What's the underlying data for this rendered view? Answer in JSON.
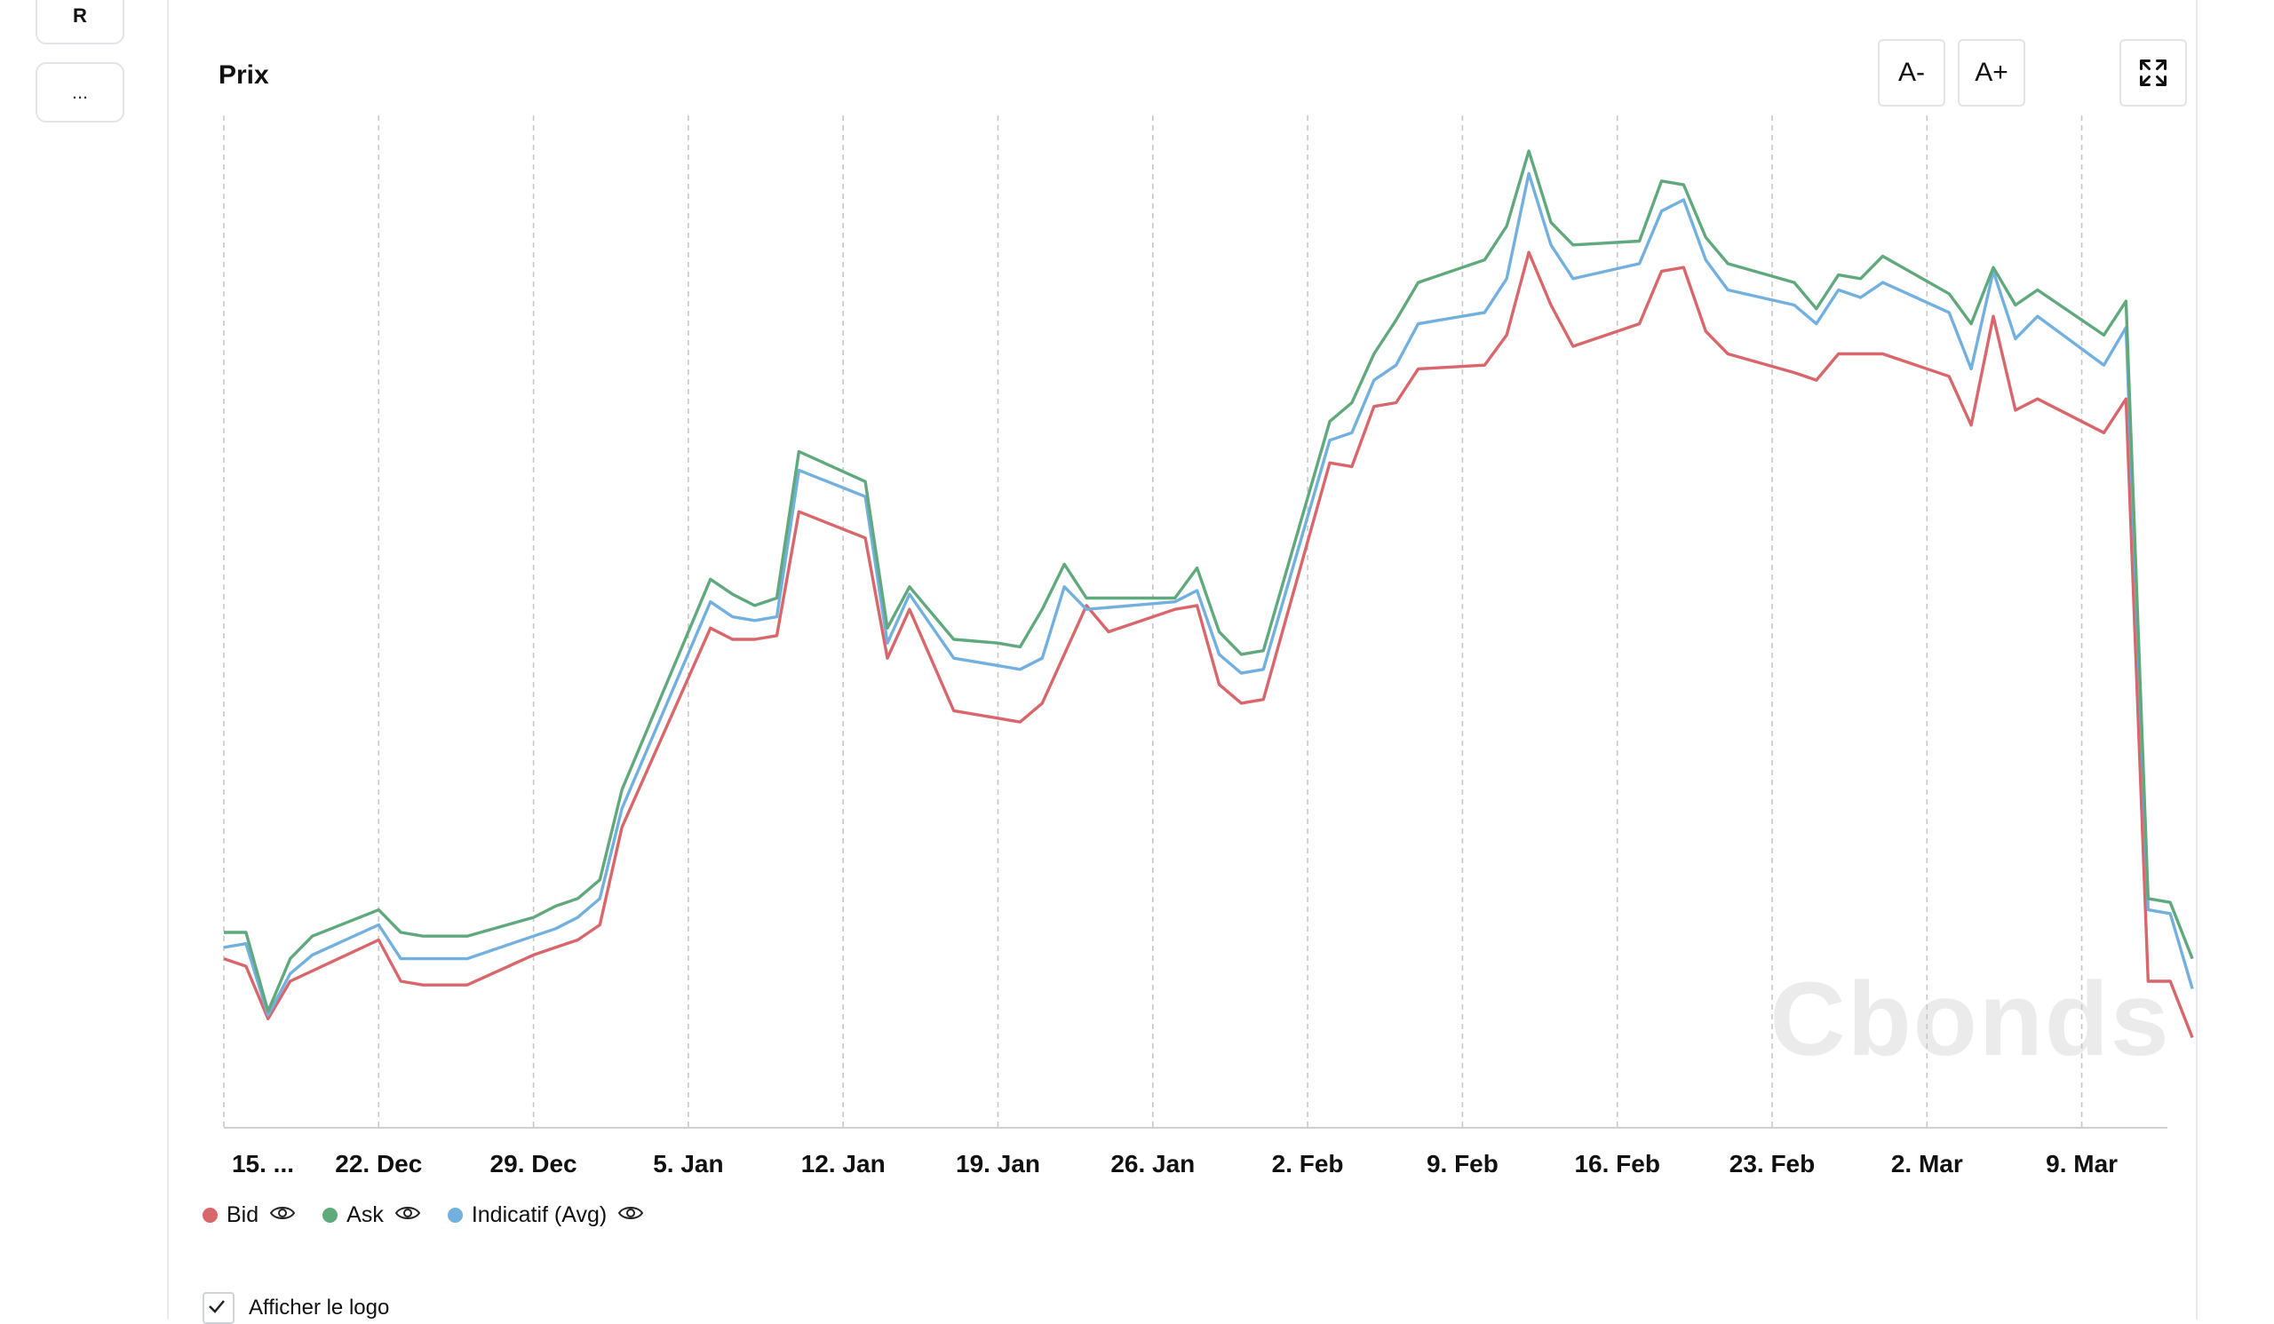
{
  "sidebar": {
    "r_label": "R",
    "more_label": "..."
  },
  "toolbar": {
    "font_decrease": "A-",
    "font_increase": "A+",
    "fullscreen_icon": "expand-icon"
  },
  "watermark": "Cbonds",
  "logo_option": {
    "label": "Afficher le logo"
  },
  "colors": {
    "bid": "#d9666b",
    "ask": "#5fa97c",
    "avg": "#72b0df",
    "grid": "#c8c8c8",
    "watermark": "#ebebeb"
  },
  "chart_data": {
    "type": "line",
    "title": "Prix",
    "xlabel": "",
    "ylabel": "",
    "x_tick_labels": [
      "15. ...",
      "22. Dec",
      "29. Dec",
      "5. Jan",
      "12. Jan",
      "19. Jan",
      "26. Jan",
      "2. Feb",
      "9. Feb",
      "16. Feb",
      "23. Feb",
      "2. Mar",
      "9. Mar"
    ],
    "x_range_days": [
      0,
      93
    ],
    "grid": "vertical dashed lines at weekly ticks",
    "legend_position": "bottom-left",
    "series": [
      {
        "name": "Bid",
        "points": [
          [
            0,
            77.5
          ],
          [
            1,
            76.5
          ],
          [
            2,
            69.5
          ],
          [
            3,
            74.5
          ],
          [
            7,
            80
          ],
          [
            8,
            74.5
          ],
          [
            9,
            74.0
          ],
          [
            11,
            74.0
          ],
          [
            14,
            78
          ],
          [
            15,
            79
          ],
          [
            16,
            80
          ],
          [
            17,
            82
          ],
          [
            18,
            95
          ],
          [
            22,
            121.5
          ],
          [
            23,
            120.0
          ],
          [
            24,
            120.0
          ],
          [
            25,
            120.5
          ],
          [
            26,
            137.0
          ],
          [
            29,
            133.5
          ],
          [
            30,
            117.5
          ],
          [
            31,
            124.0
          ],
          [
            33,
            110.5
          ],
          [
            35,
            109.5
          ],
          [
            36,
            109.0
          ],
          [
            37,
            111.5
          ],
          [
            39,
            124.5
          ],
          [
            40,
            121.0
          ],
          [
            43,
            124.0
          ],
          [
            44,
            124.5
          ],
          [
            45,
            114.0
          ],
          [
            46,
            111.5
          ],
          [
            47,
            112.0
          ],
          [
            50,
            143.5
          ],
          [
            51,
            143.0
          ],
          [
            52,
            151.0
          ],
          [
            53,
            151.5
          ],
          [
            54,
            156.0
          ],
          [
            57,
            156.5
          ],
          [
            58,
            160.5
          ],
          [
            59,
            171.5
          ],
          [
            60,
            164.5
          ],
          [
            61,
            159.0
          ],
          [
            64,
            162.0
          ],
          [
            65,
            169.0
          ],
          [
            66,
            169.5
          ],
          [
            67,
            161.0
          ],
          [
            68,
            158.0
          ],
          [
            71,
            155.5
          ],
          [
            72,
            154.5
          ],
          [
            73,
            158.0
          ],
          [
            74,
            158.0
          ],
          [
            75,
            158.0
          ],
          [
            78,
            155.0
          ],
          [
            79,
            148.5
          ],
          [
            80,
            163.0
          ],
          [
            81,
            150.5
          ],
          [
            82,
            152.0
          ],
          [
            85,
            147.5
          ],
          [
            86,
            152.0
          ],
          [
            87,
            74.5
          ],
          [
            88,
            74.5
          ],
          [
            89,
            67.0
          ]
        ]
      },
      {
        "name": "Ask",
        "points": [
          [
            0,
            81
          ],
          [
            1,
            81
          ],
          [
            2,
            70.5
          ],
          [
            3,
            77.5
          ],
          [
            4,
            80.5
          ],
          [
            7,
            84
          ],
          [
            8,
            81.0
          ],
          [
            9,
            80.5
          ],
          [
            11,
            80.5
          ],
          [
            14,
            83
          ],
          [
            15,
            84.5
          ],
          [
            16,
            85.5
          ],
          [
            17,
            88
          ],
          [
            18,
            100
          ],
          [
            22,
            128
          ],
          [
            23,
            126
          ],
          [
            24,
            124.5
          ],
          [
            25,
            125.5
          ],
          [
            26,
            145.0
          ],
          [
            29,
            141
          ],
          [
            30,
            121.5
          ],
          [
            31,
            127
          ],
          [
            33,
            120
          ],
          [
            35,
            119.5
          ],
          [
            36,
            119
          ],
          [
            37,
            124
          ],
          [
            38,
            130
          ],
          [
            39,
            125.5
          ],
          [
            43,
            125.5
          ],
          [
            44,
            129.5
          ],
          [
            45,
            121
          ],
          [
            46,
            118
          ],
          [
            47,
            118.5
          ],
          [
            50,
            149
          ],
          [
            51,
            151.5
          ],
          [
            52,
            158
          ],
          [
            53,
            162.5
          ],
          [
            54,
            167.5
          ],
          [
            57,
            170.5
          ],
          [
            58,
            175.0
          ],
          [
            59,
            185.0
          ],
          [
            60,
            175.5
          ],
          [
            61,
            172.5
          ],
          [
            64,
            173.0
          ],
          [
            65,
            181.0
          ],
          [
            66,
            180.5
          ],
          [
            67,
            173.5
          ],
          [
            68,
            170
          ],
          [
            71,
            167.5
          ],
          [
            72,
            164.0
          ],
          [
            73,
            168.5
          ],
          [
            74,
            168.0
          ],
          [
            75,
            171.0
          ],
          [
            78,
            166.0
          ],
          [
            79,
            162.0
          ],
          [
            80,
            169.5
          ],
          [
            81,
            164.5
          ],
          [
            82,
            166.5
          ],
          [
            85,
            160.5
          ],
          [
            86,
            165.0
          ],
          [
            87,
            85.5
          ],
          [
            88,
            85.0
          ],
          [
            89,
            77.5
          ]
        ]
      },
      {
        "name": "Indicatif (Avg)",
        "points": [
          [
            0,
            79
          ],
          [
            1,
            79.5
          ],
          [
            2,
            70.0
          ],
          [
            3,
            75.5
          ],
          [
            4,
            78.0
          ],
          [
            7,
            82
          ],
          [
            8,
            77.5
          ],
          [
            9,
            77.5
          ],
          [
            11,
            77.5
          ],
          [
            14,
            80.5
          ],
          [
            15,
            81.5
          ],
          [
            16,
            83.0
          ],
          [
            17,
            85.5
          ],
          [
            18,
            97.5
          ],
          [
            22,
            125
          ],
          [
            23,
            123
          ],
          [
            24,
            122.5
          ],
          [
            25,
            123.0
          ],
          [
            26,
            142.5
          ],
          [
            29,
            139
          ],
          [
            30,
            119.5
          ],
          [
            31,
            126
          ],
          [
            33,
            117.5
          ],
          [
            35,
            116.5
          ],
          [
            36,
            116.0
          ],
          [
            37,
            117.5
          ],
          [
            38,
            127
          ],
          [
            39,
            124
          ],
          [
            43,
            125.0
          ],
          [
            44,
            126.5
          ],
          [
            45,
            118
          ],
          [
            46,
            115.5
          ],
          [
            47,
            116.0
          ],
          [
            50,
            146.5
          ],
          [
            51,
            147.5
          ],
          [
            52,
            154.5
          ],
          [
            53,
            156.5
          ],
          [
            54,
            162.0
          ],
          [
            57,
            163.5
          ],
          [
            58,
            168.0
          ],
          [
            59,
            182.0
          ],
          [
            60,
            172.5
          ],
          [
            61,
            168.0
          ],
          [
            64,
            170.0
          ],
          [
            65,
            177.0
          ],
          [
            66,
            178.5
          ],
          [
            67,
            170.5
          ],
          [
            68,
            166.5
          ],
          [
            71,
            164.5
          ],
          [
            72,
            162.0
          ],
          [
            73,
            166.5
          ],
          [
            74,
            165.5
          ],
          [
            75,
            167.5
          ],
          [
            78,
            163.5
          ],
          [
            79,
            156.0
          ],
          [
            80,
            169.0
          ],
          [
            81,
            160.0
          ],
          [
            82,
            163.0
          ],
          [
            85,
            156.5
          ],
          [
            86,
            161.5
          ],
          [
            87,
            84.0
          ],
          [
            88,
            83.5
          ],
          [
            89,
            73.5
          ]
        ]
      }
    ],
    "ylim": [
      55,
      185
    ]
  }
}
